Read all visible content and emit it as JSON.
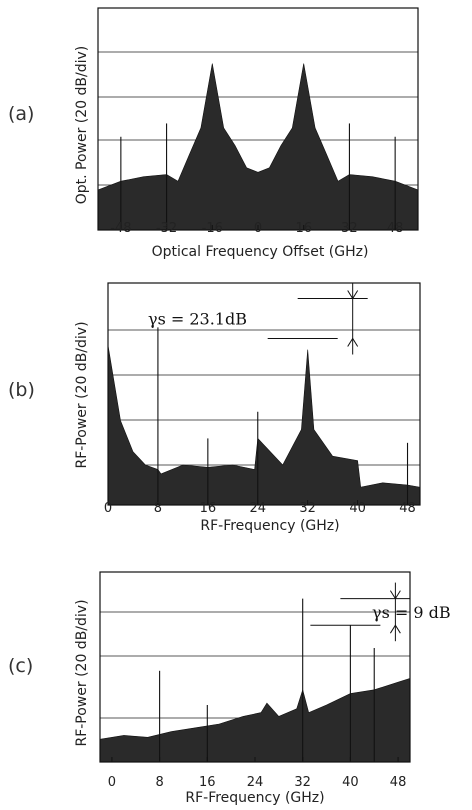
{
  "chart_data": [
    {
      "type": "line",
      "panel_label": "(a)",
      "xlabel": "Optical Frequency Offset (GHz)",
      "ylabel": "Opt. Power (20 dB/div)",
      "x_ticks": [
        -48,
        -32,
        -16,
        0,
        16,
        32,
        48
      ],
      "xlim": [
        -56,
        56
      ],
      "ylim": [
        0,
        100
      ],
      "grid": true,
      "series": [
        {
          "x": [
            -56,
            -48,
            -40,
            -32,
            -28,
            -24,
            -20,
            -16,
            -12,
            -8,
            -4,
            0,
            4,
            8,
            12,
            16,
            20,
            24,
            28,
            32,
            40,
            48,
            56
          ],
          "values": [
            18,
            22,
            24,
            25,
            22,
            34,
            46,
            75,
            46,
            38,
            28,
            26,
            28,
            38,
            46,
            75,
            46,
            34,
            22,
            25,
            24,
            22,
            18
          ]
        }
      ],
      "spikes": [
        {
          "x": -32,
          "y": 48
        },
        {
          "x": 32,
          "y": 48
        },
        {
          "x": -48,
          "y": 42
        },
        {
          "x": 48,
          "y": 42
        }
      ]
    },
    {
      "type": "line",
      "panel_label": "(b)",
      "xlabel": "RF-Frequency (GHz)",
      "ylabel": "RF-Power (20 dB/div)",
      "x_ticks": [
        0,
        8,
        16,
        24,
        32,
        40,
        48
      ],
      "xlim": [
        0,
        50
      ],
      "ylim": [
        0,
        100
      ],
      "grid": true,
      "series": [
        {
          "x": [
            0,
            2,
            4,
            6,
            8,
            8.5,
            12,
            16,
            20,
            23.5,
            24,
            28,
            31,
            32,
            33,
            36,
            40,
            40.5,
            44,
            48,
            50
          ],
          "values": [
            72,
            38,
            24,
            18,
            16,
            14,
            18,
            17,
            18,
            16,
            30,
            18,
            34,
            70,
            34,
            22,
            20,
            8,
            10,
            9,
            8
          ]
        }
      ],
      "spikes": [
        {
          "x": 8,
          "y": 80
        },
        {
          "x": 16,
          "y": 30
        },
        {
          "x": 24,
          "y": 42
        },
        {
          "x": 48,
          "y": 28
        }
      ],
      "annotations": [
        {
          "text": "γs = 23.1dB",
          "y_from": 93,
          "y_to": 75,
          "x": 32
        }
      ]
    },
    {
      "type": "line",
      "panel_label": "(c)",
      "xlabel": "RF-Frequency (GHz)",
      "ylabel": "RF-Power (20 dB/div)",
      "x_ticks": [
        0,
        8,
        16,
        24,
        32,
        40,
        48
      ],
      "xlim": [
        -2,
        50
      ],
      "ylim": [
        0,
        100
      ],
      "grid": true,
      "series": [
        {
          "x": [
            -2,
            2,
            6,
            10,
            14,
            18,
            22,
            25,
            26,
            28,
            31,
            32,
            33,
            36,
            40,
            44,
            48,
            50
          ],
          "values": [
            12,
            14,
            13,
            16,
            18,
            20,
            24,
            26,
            31,
            24,
            28,
            38,
            26,
            30,
            36,
            38,
            42,
            44
          ]
        }
      ],
      "spikes": [
        {
          "x": 8,
          "y": 48
        },
        {
          "x": 16,
          "y": 30
        },
        {
          "x": 32,
          "y": 86
        },
        {
          "x": 40,
          "y": 72
        },
        {
          "x": 44,
          "y": 60
        }
      ],
      "annotations": [
        {
          "text": "γs = 9 dB",
          "y_from": 86,
          "y_to": 72,
          "x": 40
        }
      ]
    }
  ]
}
